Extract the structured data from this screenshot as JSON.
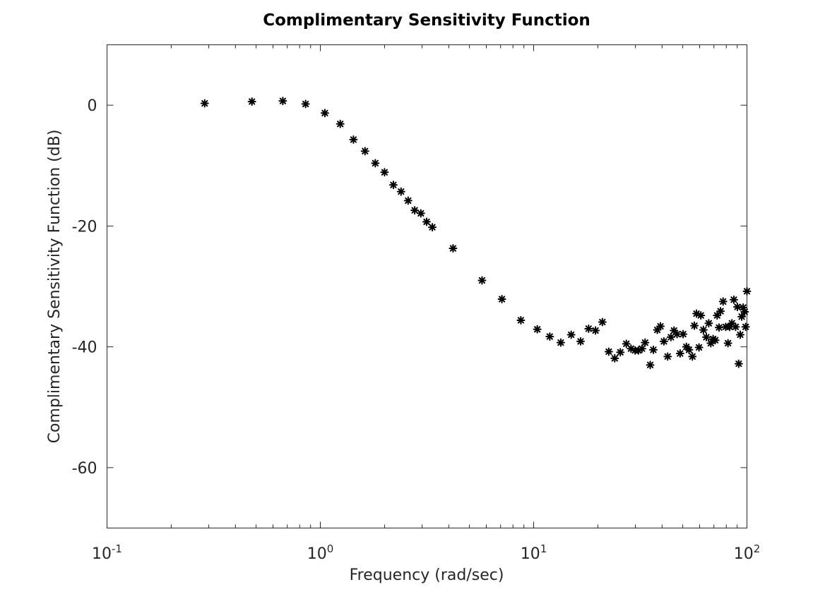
{
  "chart_data": {
    "type": "scatter",
    "title": "Complimentary Sensitivity Function",
    "xlabel": "Frequency (rad/sec)",
    "ylabel": "Complimentary Sensitivity Function (dB)",
    "xscale": "log",
    "xlim": [
      0.1,
      100
    ],
    "ylim": [
      -70,
      10
    ],
    "xticks": [
      {
        "value": 0.1,
        "base": "10",
        "exp": "-1"
      },
      {
        "value": 1,
        "base": "10",
        "exp": "0"
      },
      {
        "value": 10,
        "base": "10",
        "exp": "1"
      },
      {
        "value": 100,
        "base": "10",
        "exp": "2"
      }
    ],
    "yticks": [
      {
        "value": 0,
        "label": "0"
      },
      {
        "value": -20,
        "label": "-20"
      },
      {
        "value": -40,
        "label": "-40"
      },
      {
        "value": -60,
        "label": "-60"
      }
    ],
    "grid": false,
    "marker": "asterisk",
    "marker_color": "#000000",
    "points": [
      [
        0.287,
        0.3
      ],
      [
        0.478,
        0.6
      ],
      [
        0.667,
        0.7
      ],
      [
        0.853,
        0.2
      ],
      [
        1.05,
        -1.3
      ],
      [
        1.24,
        -3.1
      ],
      [
        1.43,
        -5.7
      ],
      [
        1.62,
        -7.6
      ],
      [
        1.81,
        -9.6
      ],
      [
        2.0,
        -11.1
      ],
      [
        2.2,
        -13.2
      ],
      [
        2.39,
        -14.3
      ],
      [
        2.58,
        -15.8
      ],
      [
        2.77,
        -17.4
      ],
      [
        2.96,
        -17.9
      ],
      [
        3.15,
        -19.3
      ],
      [
        3.35,
        -20.2
      ],
      [
        4.19,
        -23.7
      ],
      [
        5.73,
        -29.0
      ],
      [
        7.1,
        -32.1
      ],
      [
        8.71,
        -35.6
      ],
      [
        10.4,
        -37.1
      ],
      [
        11.9,
        -38.3
      ],
      [
        13.4,
        -39.3
      ],
      [
        15.0,
        -38.0
      ],
      [
        16.6,
        -39.1
      ],
      [
        18.1,
        -37.0
      ],
      [
        19.5,
        -37.3
      ],
      [
        21.0,
        -35.9
      ],
      [
        22.5,
        -40.8
      ],
      [
        24.0,
        -41.9
      ],
      [
        25.5,
        -40.9
      ],
      [
        27.2,
        -39.5
      ],
      [
        28.6,
        -40.3
      ],
      [
        29.9,
        -40.6
      ],
      [
        31.0,
        -40.6
      ],
      [
        32.2,
        -40.3
      ],
      [
        33.3,
        -39.3
      ],
      [
        35.2,
        -43.0
      ],
      [
        36.4,
        -40.5
      ],
      [
        38.0,
        -37.2
      ],
      [
        39.3,
        -36.6
      ],
      [
        40.8,
        -39.1
      ],
      [
        42.5,
        -41.6
      ],
      [
        44.0,
        -38.4
      ],
      [
        45.5,
        -37.3
      ],
      [
        47.0,
        -37.9
      ],
      [
        48.6,
        -41.1
      ],
      [
        50.2,
        -37.9
      ],
      [
        52.0,
        -40.0
      ],
      [
        53.5,
        -40.5
      ],
      [
        55.5,
        -41.6
      ],
      [
        56.7,
        -36.5
      ],
      [
        58.0,
        -34.5
      ],
      [
        59.6,
        -40.1
      ],
      [
        60.8,
        -34.8
      ],
      [
        62.5,
        -37.2
      ],
      [
        64.5,
        -38.4
      ],
      [
        66.2,
        -36.1
      ],
      [
        67.7,
        -39.4
      ],
      [
        69.4,
        -38.7
      ],
      [
        71.0,
        -38.9
      ],
      [
        72.5,
        -34.8
      ],
      [
        74.0,
        -36.8
      ],
      [
        75.2,
        -34.1
      ],
      [
        77.3,
        -32.5
      ],
      [
        79.5,
        -36.7
      ],
      [
        81.5,
        -39.4
      ],
      [
        83.0,
        -36.7
      ],
      [
        85.0,
        -36.1
      ],
      [
        86.8,
        -32.2
      ],
      [
        88.5,
        -36.7
      ],
      [
        90.2,
        -33.4
      ],
      [
        91.5,
        -42.8
      ],
      [
        93.0,
        -38.0
      ],
      [
        94.5,
        -35.0
      ],
      [
        96.0,
        -33.5
      ],
      [
        97.6,
        -34.2
      ],
      [
        98.6,
        -36.7
      ],
      [
        100.0,
        -30.8
      ]
    ]
  }
}
